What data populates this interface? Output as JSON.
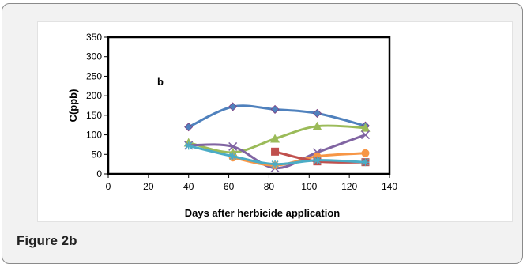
{
  "figure": {
    "caption": "Figure 2b"
  },
  "chart_data": {
    "type": "line",
    "panel_label": "b",
    "xlabel": "Days after herbicide application",
    "ylabel": "C(ppb)",
    "xlim": [
      0,
      140
    ],
    "ylim": [
      0,
      350
    ],
    "xticks": [
      0,
      20,
      40,
      60,
      80,
      100,
      120,
      140
    ],
    "yticks": [
      0,
      50,
      100,
      150,
      200,
      250,
      300,
      350
    ],
    "grid": false,
    "legend": "none",
    "series": [
      {
        "color": "#4f81bd",
        "marker": "diamond",
        "x": [
          40,
          62,
          83,
          104,
          128
        ],
        "y": [
          120,
          172,
          165,
          155,
          123
        ]
      },
      {
        "color": "#9bbb59",
        "marker": "triangle",
        "x": [
          40,
          62,
          83,
          104,
          128
        ],
        "y": [
          80,
          55,
          90,
          122,
          118
        ]
      },
      {
        "color": "#8064a2",
        "marker": "x",
        "x": [
          40,
          62,
          83,
          104,
          128
        ],
        "y": [
          73,
          70,
          15,
          55,
          100
        ]
      },
      {
        "color": "#f79646",
        "marker": "circle",
        "x": [
          62,
          83,
          104,
          128
        ],
        "y": [
          42,
          22,
          45,
          53
        ]
      },
      {
        "color": "#c0504d",
        "marker": "square",
        "x": [
          83,
          104,
          128
        ],
        "y": [
          57,
          32,
          30
        ]
      },
      {
        "color": "#4bacc6",
        "marker": "star",
        "x": [
          40,
          62,
          83,
          104,
          128
        ],
        "y": [
          72,
          45,
          25,
          35,
          30
        ]
      }
    ]
  }
}
